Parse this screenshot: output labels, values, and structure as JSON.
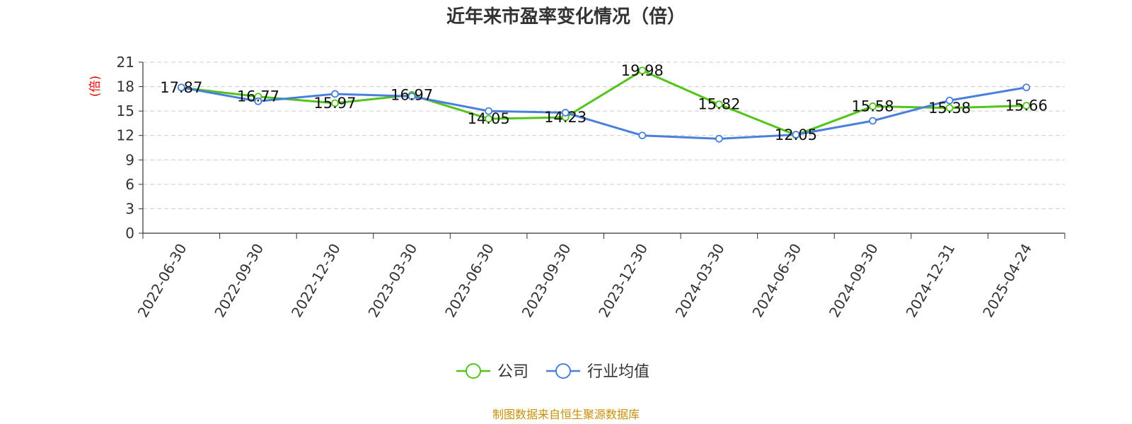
{
  "chart_data": {
    "type": "line",
    "title": "近年来市盈率变化情况（倍）",
    "ylabel": "(倍)",
    "xlabel": "",
    "categories": [
      "2022-06-30",
      "2022-09-30",
      "2022-12-30",
      "2023-03-30",
      "2023-06-30",
      "2023-09-30",
      "2023-12-30",
      "2024-03-30",
      "2024-06-30",
      "2024-09-30",
      "2024-12-31",
      "2025-04-24"
    ],
    "ylim": [
      0,
      21
    ],
    "yticks": [
      0,
      3,
      6,
      9,
      12,
      15,
      18,
      21
    ],
    "grid": true,
    "legend_position": "bottom-center",
    "series": [
      {
        "name": "公司",
        "color": "#52c41a",
        "values": [
          17.87,
          16.77,
          15.97,
          16.97,
          14.05,
          14.23,
          19.98,
          15.82,
          12.05,
          15.58,
          15.38,
          15.66
        ],
        "labels": [
          "17.87",
          "16.77",
          "15.97",
          "16.97",
          "14.05",
          "14.23",
          "19.98",
          "15.82",
          "12.05",
          "15.58",
          "15.38",
          "15.66"
        ]
      },
      {
        "name": "行业均值",
        "color": "#4a7fdb",
        "values": [
          17.9,
          16.2,
          17.1,
          16.8,
          15.0,
          14.8,
          12.0,
          11.6,
          12.1,
          13.8,
          16.3,
          17.9
        ]
      }
    ]
  },
  "footer": {
    "source": "制图数据来自恒生聚源数据库",
    "source_color": "#c8900a"
  },
  "colors": {
    "axis": "#333333",
    "grid": "#cccccc",
    "ylabel": "#e60000"
  }
}
